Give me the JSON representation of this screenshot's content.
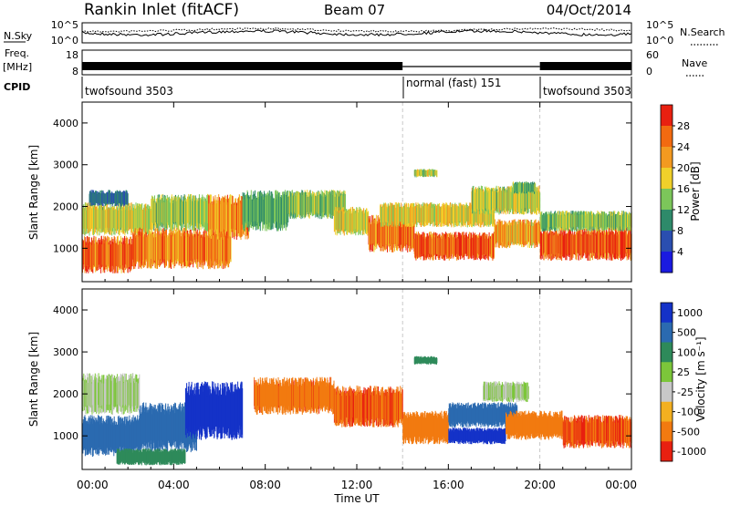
{
  "header": {
    "title": "Rankin Inlet (fitACF)",
    "beam": "Beam 07",
    "date": "04/Oct/2014"
  },
  "top_panels": {
    "nsky_label": "N.Sky",
    "nsearch_label": "N.Search",
    "noise_ticks_left": [
      "10^5",
      "10^0"
    ],
    "noise_ticks_right": [
      "10^5",
      "10^0"
    ],
    "freq_label_1": "Freq.",
    "freq_label_2": "[MHz]",
    "freq_ticks": [
      "18",
      "8"
    ],
    "nave_label": "Nave",
    "nave_ticks": [
      "60",
      "0"
    ],
    "cpid_label": "CPID",
    "cpid_segments": [
      {
        "label": "twofsound 3503",
        "start_h": 0,
        "end_h": 14
      },
      {
        "label": "normal (fast) 151",
        "start_h": 14,
        "end_h": 20
      },
      {
        "label": "twofsound 3503",
        "start_h": 20,
        "end_h": 24
      }
    ]
  },
  "chart_data": [
    {
      "type": "heatmap",
      "quantity": "power",
      "ylabel": "Slant Range [km]",
      "ylim": [
        200,
        4500
      ],
      "yticks": [
        "1000",
        "2000",
        "3000",
        "4000"
      ],
      "colorbar_label": "Power [dB]",
      "colorbar_ticks": [
        "4",
        "8",
        "12",
        "16",
        "20",
        "24",
        "28"
      ],
      "colors": [
        "#1a1ae0",
        "#2a4eb0",
        "#2e8a6a",
        "#7cc65a",
        "#f0d02a",
        "#f39a20",
        "#f26a10",
        "#e82010"
      ],
      "bands": [
        {
          "t0": 0.0,
          "t1": 2.2,
          "r0": 400,
          "r1": 1300,
          "v": 27
        },
        {
          "t0": 0.0,
          "t1": 3.0,
          "r0": 1300,
          "r1": 2100,
          "v": 17
        },
        {
          "t0": 0.3,
          "t1": 2.0,
          "r0": 2000,
          "r1": 2400,
          "v": 8
        },
        {
          "t0": 2.2,
          "t1": 6.5,
          "r0": 500,
          "r1": 1500,
          "v": 24
        },
        {
          "t0": 3.0,
          "t1": 5.5,
          "r0": 1400,
          "r1": 2300,
          "v": 15
        },
        {
          "t0": 5.5,
          "t1": 7.3,
          "r0": 1200,
          "r1": 2300,
          "v": 23
        },
        {
          "t0": 7.0,
          "t1": 9.0,
          "r0": 1400,
          "r1": 2400,
          "v": 12
        },
        {
          "t0": 9.0,
          "t1": 11.5,
          "r0": 1700,
          "r1": 2400,
          "v": 14
        },
        {
          "t0": 11.0,
          "t1": 12.5,
          "r0": 1300,
          "r1": 2000,
          "v": 17
        },
        {
          "t0": 12.5,
          "t1": 14.5,
          "r0": 900,
          "r1": 1800,
          "v": 26
        },
        {
          "t0": 14.5,
          "t1": 18.0,
          "r0": 700,
          "r1": 1400,
          "v": 27
        },
        {
          "t0": 13.0,
          "t1": 18.0,
          "r0": 1500,
          "r1": 2100,
          "v": 18
        },
        {
          "t0": 17.0,
          "t1": 20.0,
          "r0": 1800,
          "r1": 2500,
          "v": 16
        },
        {
          "t0": 18.0,
          "t1": 20.0,
          "r0": 1000,
          "r1": 1700,
          "v": 22
        },
        {
          "t0": 20.0,
          "t1": 24.0,
          "r0": 700,
          "r1": 1500,
          "v": 28
        },
        {
          "t0": 20.0,
          "t1": 24.0,
          "r0": 1400,
          "r1": 1900,
          "v": 14
        },
        {
          "t0": 14.5,
          "t1": 15.5,
          "r0": 2700,
          "r1": 2900,
          "v": 16
        },
        {
          "t0": 18.8,
          "t1": 19.8,
          "r0": 2300,
          "r1": 2600,
          "v": 13
        }
      ]
    },
    {
      "type": "heatmap",
      "quantity": "velocity",
      "ylabel": "Slant Range [km]",
      "ylim": [
        200,
        4500
      ],
      "yticks": [
        "1000",
        "2000",
        "3000",
        "4000"
      ],
      "colorbar_label": "Velocity [m s⁻¹]",
      "colorbar_ticks": [
        "1000",
        "500",
        "100",
        "25",
        "-25",
        "-100",
        "-500",
        "-1000"
      ],
      "colors": [
        "#1432c8",
        "#2b6ab0",
        "#2e8a5a",
        "#7cc63a",
        "#c8c8c8",
        "#f3b020",
        "#f27a10",
        "#e82010"
      ],
      "bands": [
        {
          "t0": 0.0,
          "t1": 2.5,
          "r0": 1500,
          "r1": 2500,
          "v": 0
        },
        {
          "t0": 0.0,
          "t1": 2.5,
          "r0": 500,
          "r1": 1500,
          "v": 200
        },
        {
          "t0": 2.5,
          "t1": 5.0,
          "r0": 600,
          "r1": 1800,
          "v": 300
        },
        {
          "t0": 4.5,
          "t1": 7.0,
          "r0": 900,
          "r1": 2300,
          "v": 800
        },
        {
          "t0": 1.5,
          "t1": 4.5,
          "r0": 300,
          "r1": 700,
          "v": 60
        },
        {
          "t0": 7.5,
          "t1": 11.0,
          "r0": 1500,
          "r1": 2400,
          "v": -400
        },
        {
          "t0": 11.0,
          "t1": 14.0,
          "r0": 1200,
          "r1": 2200,
          "v": -450
        },
        {
          "t0": 14.0,
          "t1": 16.0,
          "r0": 800,
          "r1": 1600,
          "v": -350
        },
        {
          "t0": 16.0,
          "t1": 18.5,
          "r0": 800,
          "r1": 1200,
          "v": 900
        },
        {
          "t0": 16.0,
          "t1": 19.0,
          "r0": 1200,
          "r1": 1800,
          "v": 200
        },
        {
          "t0": 17.5,
          "t1": 19.5,
          "r0": 1800,
          "r1": 2300,
          "v": 0
        },
        {
          "t0": 18.5,
          "t1": 21.0,
          "r0": 900,
          "r1": 1600,
          "v": -300
        },
        {
          "t0": 21.0,
          "t1": 24.0,
          "r0": 700,
          "r1": 1500,
          "v": -500
        },
        {
          "t0": 14.5,
          "t1": 15.5,
          "r0": 2700,
          "r1": 2900,
          "v": 60
        }
      ]
    }
  ],
  "xaxis": {
    "xlabel": "Time UT",
    "xticks": [
      "00:00",
      "04:00",
      "08:00",
      "12:00",
      "16:00",
      "20:00",
      "00:00"
    ],
    "xlim": [
      0,
      24
    ]
  }
}
